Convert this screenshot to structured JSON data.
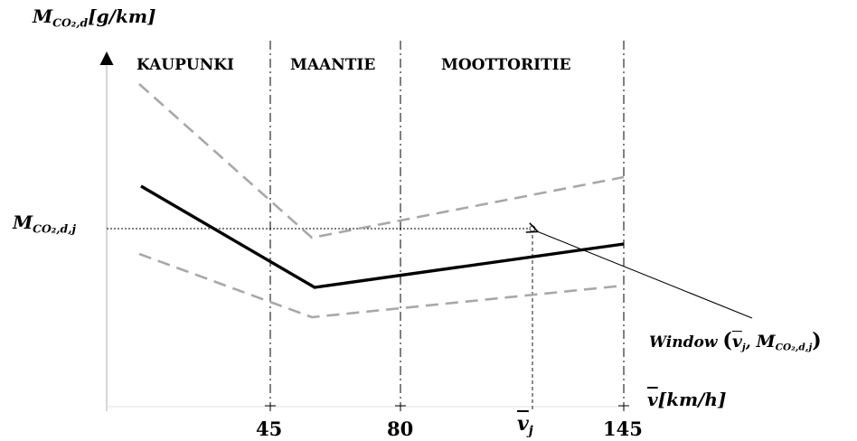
{
  "diagram": {
    "y_axis_label": {
      "main": "M",
      "sub": "CO₂,d",
      "unit": "[g/km]"
    },
    "x_axis_label": {
      "main": "v",
      "unit": "[km/h]"
    },
    "ref_level_label": {
      "main": "M",
      "sub": "CO₂,d,j"
    },
    "zones": [
      "KAUPUNKI",
      "MAANTIE",
      "MOOTTORITIE"
    ],
    "ticks": [
      "45",
      "80",
      "145"
    ],
    "vj_tick": {
      "main": "v",
      "sub": "j"
    },
    "window_annotation": {
      "word": "Window",
      "open": "(",
      "v": "v",
      "v_sub": "j",
      "sep": ", ",
      "m": "M",
      "m_sub": "CO₂,d,j",
      "close": ")"
    }
  }
}
